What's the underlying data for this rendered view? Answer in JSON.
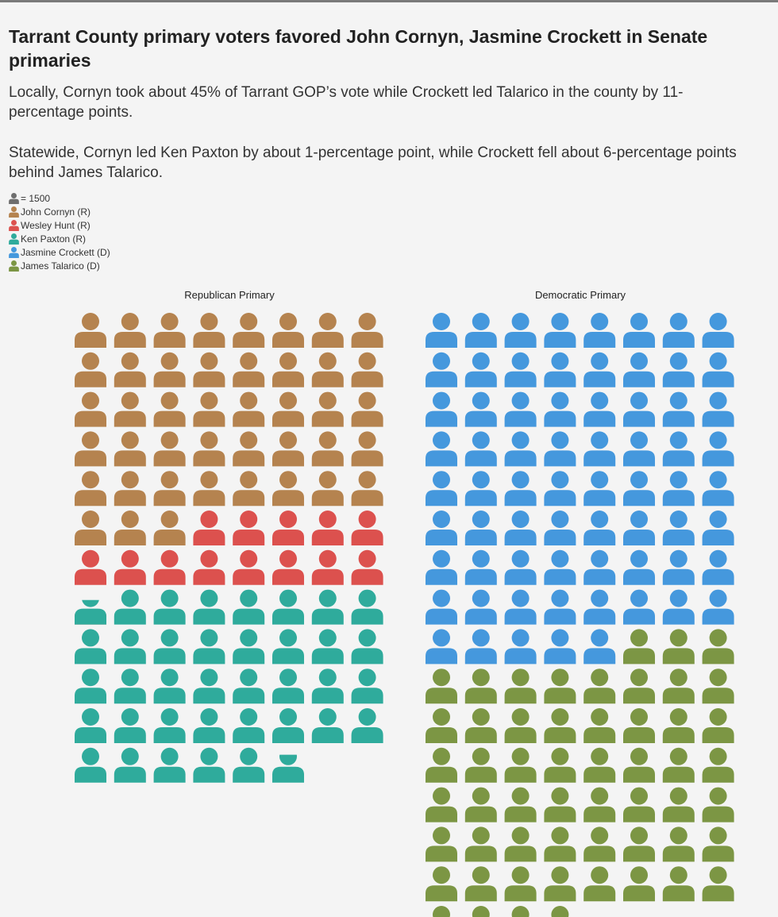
{
  "title": "Tarrant County primary voters favored John Cornyn, Jasmine Crockett in Senate primaries",
  "subtitle_local": "Locally, Cornyn took about 45% of Tarrant GOP’s vote while Crockett led Talarico in the county by 11-percentage points.",
  "subtitle_statewide": "Statewide, Cornyn led Ken Paxton by about 1-percentage point, while Crockett fell about 6-percentage points behind James Talarico.",
  "legend": {
    "unit_label": "= 1500",
    "unit_color": "#6e6e6e",
    "items": [
      {
        "label": "John Cornyn (R)",
        "color": "#b5834f"
      },
      {
        "label": "Wesley Hunt (R)",
        "color": "#dc514e"
      },
      {
        "label": "Ken Paxton (R)",
        "color": "#2fab9c"
      },
      {
        "label": "Jasmine Crockett (D)",
        "color": "#4598dd"
      },
      {
        "label": "James Talarico (D)",
        "color": "#7c9644"
      }
    ]
  },
  "chart_data": {
    "type": "waffle",
    "icon_unit": 1500,
    "columns": 8,
    "panels": [
      {
        "title": "Republican Primary",
        "series": [
          {
            "name": "John Cornyn (R)",
            "icons": 43.0,
            "color": "#b5834f"
          },
          {
            "name": "Wesley Hunt (R)",
            "icons": 13.3,
            "color": "#dc514e"
          },
          {
            "name": "Ken Paxton (R)",
            "icons": 37.5,
            "color": "#2fab9c"
          }
        ]
      },
      {
        "title": "Democratic Primary",
        "series": [
          {
            "name": "Jasmine Crockett (D)",
            "icons": 69.0,
            "color": "#4598dd"
          },
          {
            "name": "James Talarico (D)",
            "icons": 55.5,
            "color": "#7c9644"
          }
        ]
      }
    ]
  }
}
